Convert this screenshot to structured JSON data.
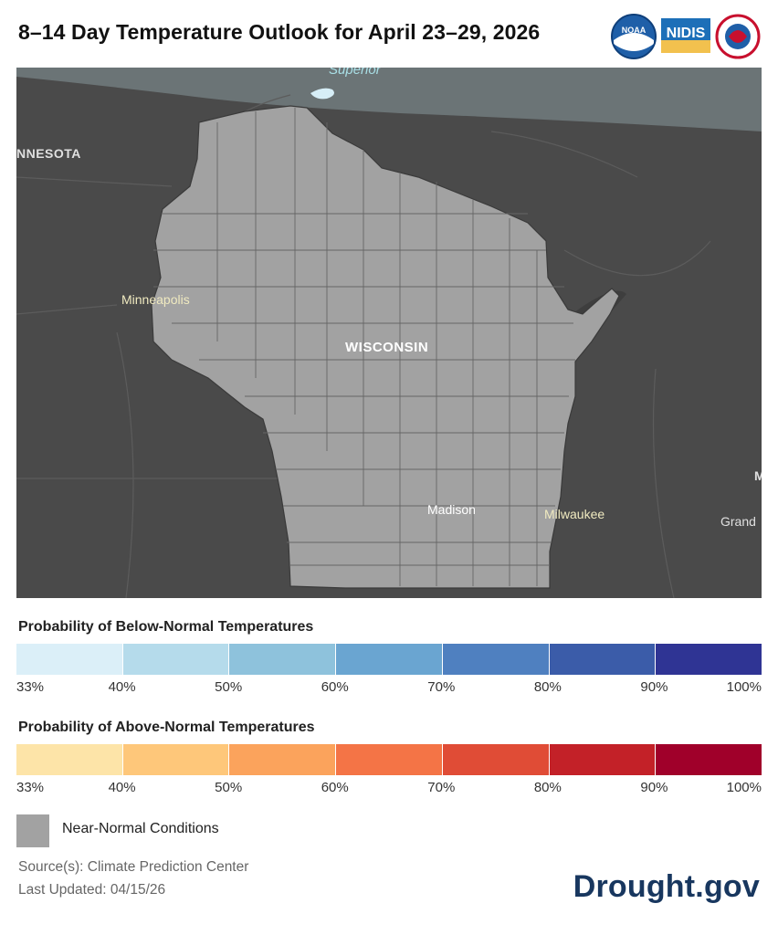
{
  "title": "8–14 Day Temperature Outlook for April 23–29, 2026",
  "logos": [
    "NOAA",
    "NIDIS",
    "National Weather Service"
  ],
  "map": {
    "labels": {
      "lake": "Superior",
      "state_left": "NNESOTA",
      "state_main": "WISCONSIN",
      "city1": "Minneapolis",
      "city2": "Madison",
      "city3": "Milwaukee",
      "city4": "Grand",
      "edge_letter": "M"
    },
    "colors": {
      "background": "#4a4a4a",
      "wisconsin_fill": "#a2a2a2",
      "lake_water": "#6b7476",
      "lake_light": "#d6eef7"
    }
  },
  "legend": {
    "below": {
      "title": "Probability of Below-Normal Temperatures",
      "colors": [
        "#dbeff8",
        "#b5dbeb",
        "#8ec2dc",
        "#6aa5d1",
        "#4f80c0",
        "#3b5ca9",
        "#2f3494"
      ],
      "ticks": [
        "33%",
        "40%",
        "50%",
        "60%",
        "70%",
        "80%",
        "90%",
        "100%"
      ]
    },
    "above": {
      "title": "Probability of Above-Normal Temperatures",
      "colors": [
        "#fde4a8",
        "#fec77a",
        "#fba35c",
        "#f47446",
        "#e04c36",
        "#c32128",
        "#a0002a"
      ],
      "ticks": [
        "33%",
        "40%",
        "50%",
        "60%",
        "70%",
        "80%",
        "90%",
        "100%"
      ]
    },
    "near_normal": "Near-Normal Conditions"
  },
  "footer": {
    "source": "Source(s): Climate Prediction Center",
    "updated": "Last Updated: 04/15/26",
    "brand": "Drought.gov"
  }
}
